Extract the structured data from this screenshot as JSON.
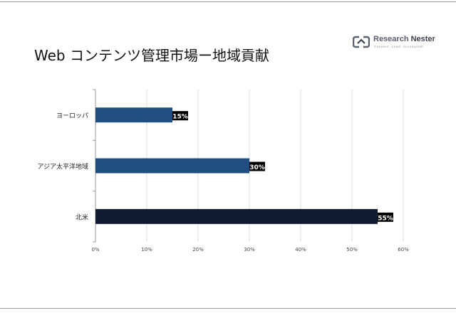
{
  "title": "Web コンテンツ管理市場ー地域貢献",
  "logo": {
    "name_part1": "Research ",
    "name_part2": "Nester",
    "tagline": "Connect. Lead. Accomplish"
  },
  "chart_data": {
    "type": "bar",
    "orientation": "horizontal",
    "categories": [
      "ヨーロッパ",
      "アジア太平洋地域",
      "北米"
    ],
    "values": [
      15,
      30,
      55
    ],
    "data_labels": [
      "15%",
      "30%",
      "55%"
    ],
    "bar_colors": [
      "#1f4e80",
      "#1f4e80",
      "#101c30"
    ],
    "xlim": [
      0,
      60
    ],
    "x_ticks": [
      0,
      10,
      20,
      30,
      40,
      50,
      60
    ],
    "x_tick_labels": [
      "0%",
      "10%",
      "20%",
      "30%",
      "40%",
      "50%",
      "60%"
    ],
    "grid": true,
    "legend": "none"
  }
}
